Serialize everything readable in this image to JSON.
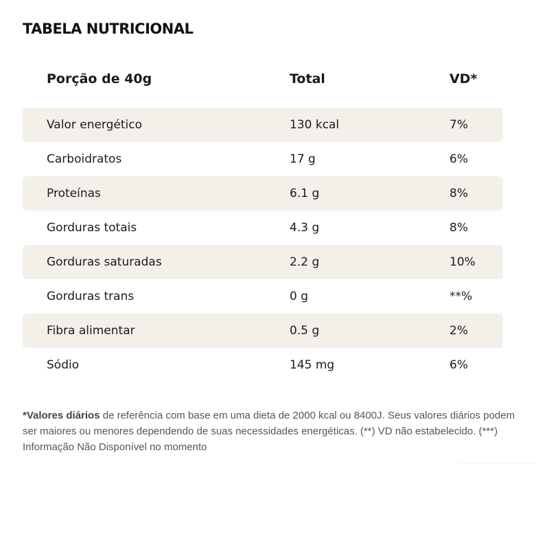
{
  "title": "TABELA NUTRICIONAL",
  "header": {
    "portion": "Porção de 40g",
    "total": "Total",
    "vd": "VD*"
  },
  "rows": [
    {
      "name": "Valor energético",
      "total": "130 kcal",
      "vd": "7%"
    },
    {
      "name": "Carboidratos",
      "total": "17 g",
      "vd": "6%"
    },
    {
      "name": "Proteínas",
      "total": "6.1 g",
      "vd": "8%"
    },
    {
      "name": "Gorduras totais",
      "total": "4.3 g",
      "vd": "8%"
    },
    {
      "name": "Gorduras saturadas",
      "total": "2.2 g",
      "vd": "10%"
    },
    {
      "name": "Gorduras trans",
      "total": "0 g",
      "vd": "**%"
    },
    {
      "name": "Fibra alimentar",
      "total": "0.5 g",
      "vd": "2%"
    },
    {
      "name": "Sódio",
      "total": "145 mg",
      "vd": "6%"
    }
  ],
  "footnote": {
    "bold": "*Valores diários",
    "text": " de referência com base em uma dieta de 2000 kcal ou 8400J. Seus valores diários podem ser maiores ou menores dependendo de suas necessidades energéticas. (**) VD não estabelecido. (***) Informação Não Disponível no momento"
  }
}
